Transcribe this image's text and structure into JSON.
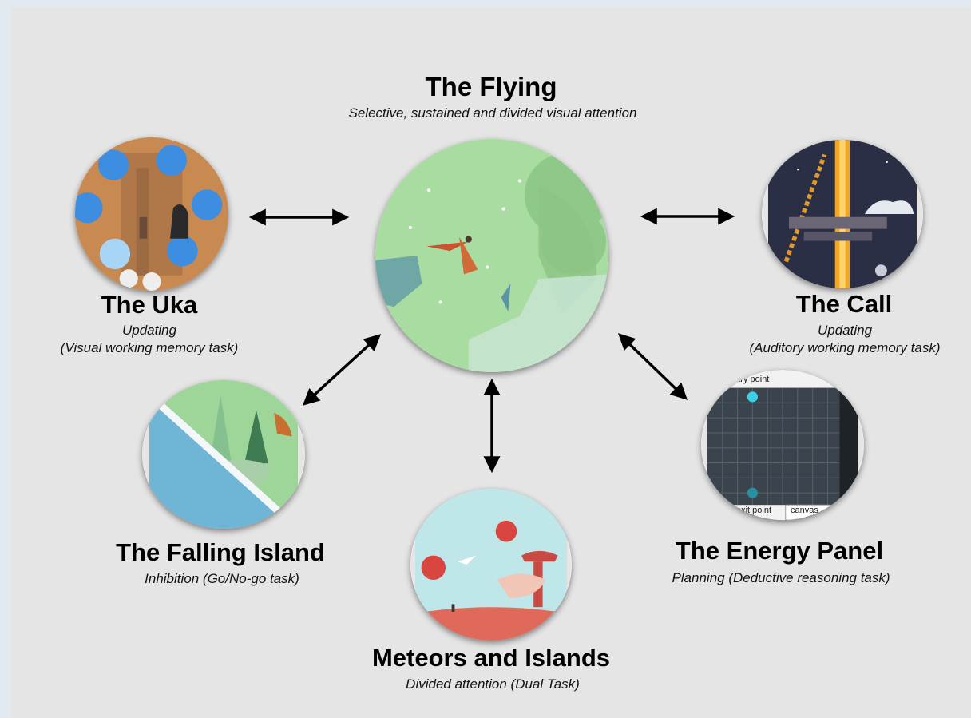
{
  "games": {
    "flying": {
      "title": "The Flying",
      "subtitle": "Selective, sustained and divided visual attention"
    },
    "uka": {
      "title": "The Uka",
      "subtitle_1": "Updating",
      "subtitle_2": "(Visual working memory task)"
    },
    "call": {
      "title": "The Call",
      "subtitle_1": "Updating",
      "subtitle_2": "(Auditory working memory task)"
    },
    "falling_island": {
      "title": "The Falling Island",
      "subtitle": "Inhibition (Go/No-go task)"
    },
    "energy_panel": {
      "title": "The Energy Panel",
      "subtitle": "Planning (Deductive reasoning task)",
      "screen_labels": {
        "entry": "entry point",
        "exit": "exit point",
        "canvas": "canvas"
      }
    },
    "meteors": {
      "title": "Meteors and Islands",
      "subtitle": "Divided attention (Dual Task)"
    }
  },
  "colors": {
    "background": "#e5e5e5",
    "flying_sky": "#a9dca0",
    "uka_ground": "#c98a52",
    "call_night": "#2a2f45",
    "falling_ice": "#6fb6d6",
    "energy_grid": "#3b444c",
    "meteor_red": "#d9463f"
  }
}
